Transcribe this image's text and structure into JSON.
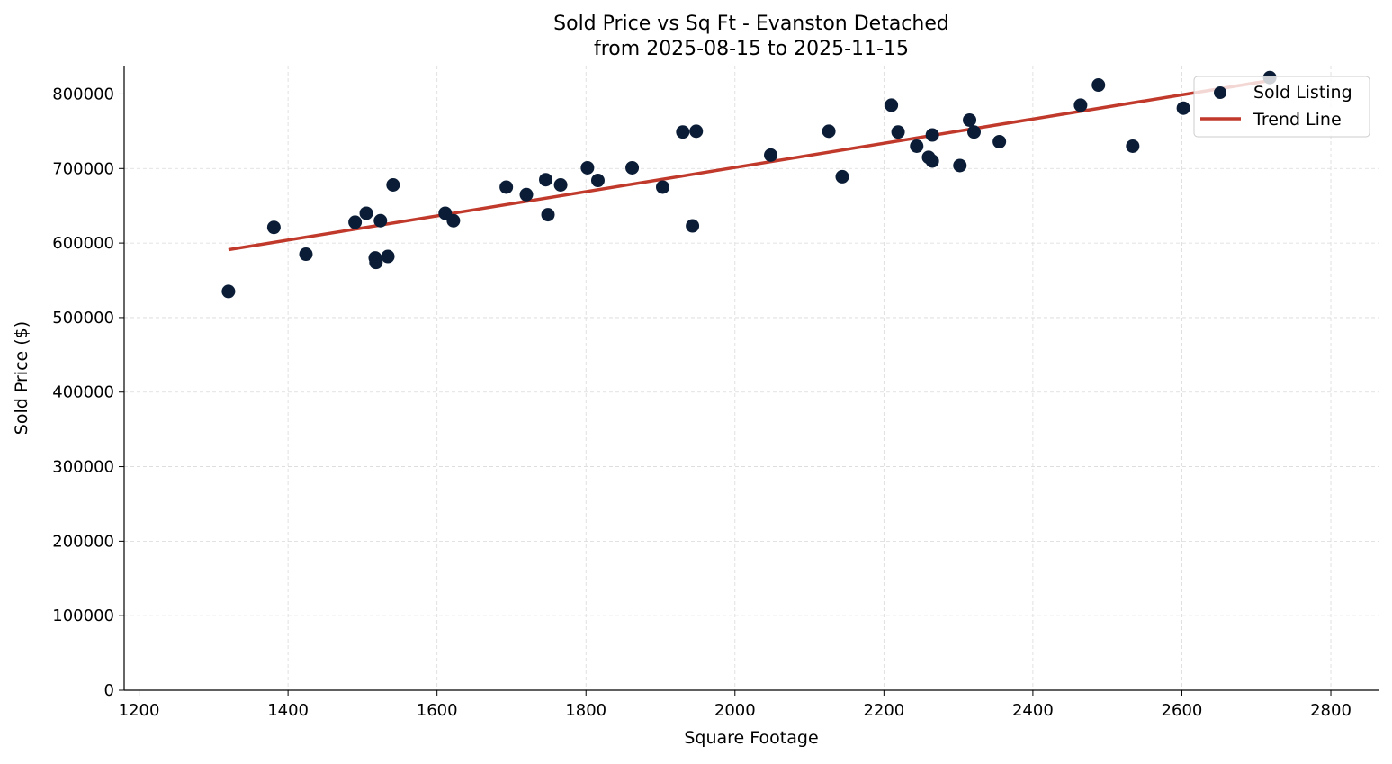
{
  "chart_data": {
    "type": "scatter",
    "title": "Sold Price vs Sq Ft - Evanston Detached",
    "subtitle": "from 2025-08-15 to 2025-11-15",
    "xlabel": "Square Footage",
    "ylabel": "Sold Price ($)",
    "xlim": [
      1180,
      2864
    ],
    "ylim": [
      0,
      838000
    ],
    "xticks": [
      1200,
      1400,
      1600,
      1800,
      2000,
      2200,
      2400,
      2600,
      2800
    ],
    "yticks": [
      0,
      100000,
      200000,
      300000,
      400000,
      500000,
      600000,
      700000,
      800000
    ],
    "grid": true,
    "legend_position": "top-right",
    "colors": {
      "points": "#0b1d36",
      "trend": "#c0392b",
      "grid": "#d9d9d9"
    },
    "series": [
      {
        "name": "Sold Listing",
        "kind": "scatter",
        "points": [
          [
            1320,
            535000
          ],
          [
            1381,
            621000
          ],
          [
            1424,
            585000
          ],
          [
            1490,
            628000
          ],
          [
            1505,
            640000
          ],
          [
            1524,
            630000
          ],
          [
            1517,
            580000
          ],
          [
            1518,
            574000
          ],
          [
            1534,
            582000
          ],
          [
            1541,
            678000
          ],
          [
            1611,
            640000
          ],
          [
            1622,
            630000
          ],
          [
            1693,
            675000
          ],
          [
            1720,
            665000
          ],
          [
            1746,
            685000
          ],
          [
            1749,
            638000
          ],
          [
            1766,
            678000
          ],
          [
            1802,
            701000
          ],
          [
            1816,
            684000
          ],
          [
            1862,
            701000
          ],
          [
            1903,
            675000
          ],
          [
            1930,
            749000
          ],
          [
            1948,
            750000
          ],
          [
            1943,
            623000
          ],
          [
            2048,
            718000
          ],
          [
            2126,
            750000
          ],
          [
            2144,
            689000
          ],
          [
            2210,
            785000
          ],
          [
            2219,
            749000
          ],
          [
            2244,
            730000
          ],
          [
            2265,
            745000
          ],
          [
            2260,
            715000
          ],
          [
            2265,
            710000
          ],
          [
            2302,
            704000
          ],
          [
            2315,
            765000
          ],
          [
            2321,
            749000
          ],
          [
            2355,
            736000
          ],
          [
            2464,
            785000
          ],
          [
            2488,
            812000
          ],
          [
            2534,
            730000
          ],
          [
            2602,
            781000
          ],
          [
            2718,
            822000
          ]
        ]
      },
      {
        "name": "Trend Line",
        "kind": "line",
        "points": [
          [
            1320,
            591000
          ],
          [
            2718,
            818000
          ]
        ]
      }
    ]
  }
}
